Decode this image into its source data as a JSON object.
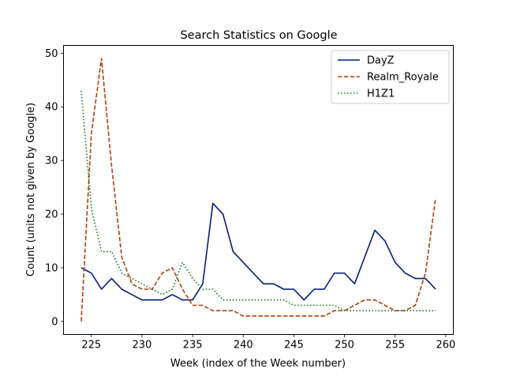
{
  "chart_data": {
    "type": "line",
    "title": "Search Statistics on Google",
    "xlabel": "Week (index of the Week number)",
    "ylabel": "Count (units not given by Google)",
    "xlim": [
      222.25,
      260.75
    ],
    "ylim": [
      -2.45,
      51.45
    ],
    "xticks": [
      225,
      230,
      235,
      240,
      245,
      250,
      255,
      260
    ],
    "yticks": [
      0,
      10,
      20,
      30,
      40,
      50
    ],
    "grid": false,
    "legend_position": "upper right",
    "x": [
      224,
      225,
      226,
      227,
      228,
      229,
      230,
      231,
      232,
      233,
      234,
      235,
      236,
      237,
      238,
      239,
      240,
      241,
      242,
      243,
      244,
      245,
      246,
      247,
      248,
      249,
      250,
      251,
      252,
      253,
      254,
      255,
      256,
      257,
      258,
      259
    ],
    "series": [
      {
        "name": "DayZ",
        "color": "#001c7f",
        "dash": "solid",
        "values": [
          10,
          9,
          6,
          8,
          6,
          5,
          4,
          4,
          4,
          5,
          4,
          4,
          7,
          22,
          20,
          13,
          11,
          9,
          7,
          7,
          6,
          6,
          4,
          6,
          6,
          9,
          9,
          7,
          12,
          17,
          15,
          11,
          9,
          8,
          8,
          6
        ]
      },
      {
        "name": "Realm_Royale",
        "color": "#b1400d",
        "dash": "dashed",
        "values": [
          0,
          35,
          49,
          29,
          12,
          7,
          6,
          6,
          9,
          10,
          6,
          3,
          3,
          2,
          2,
          2,
          1,
          1,
          1,
          1,
          1,
          1,
          1,
          1,
          1,
          2,
          2,
          3,
          4,
          4,
          3,
          2,
          2,
          3,
          9,
          23
        ]
      },
      {
        "name": "H1Z1",
        "color": "#12711c",
        "dash": "dotted",
        "values": [
          43,
          21,
          13,
          13,
          9,
          8,
          7,
          6,
          5,
          6,
          11,
          8,
          6,
          6,
          4,
          4,
          4,
          4,
          4,
          4,
          4,
          3,
          3,
          3,
          3,
          3,
          2,
          2,
          2,
          2,
          2,
          2,
          2,
          2,
          2,
          2
        ]
      }
    ]
  }
}
